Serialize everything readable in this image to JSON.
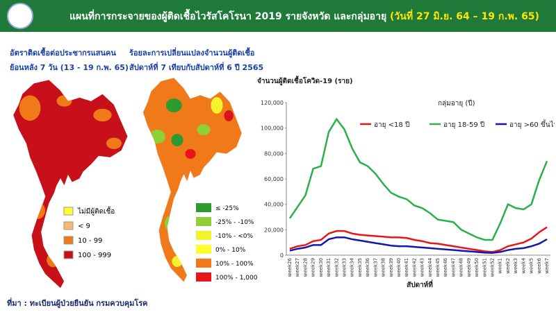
{
  "header": {
    "title": "แผนที่การกระจายของผู้ติดเชื้อไวรัสโคโรนา 2019 รายจังหวัด และกลุ่มอายุ",
    "date_range": "(วันที่ 27 มิ.ย. 64 – 19 ก.พ. 65)"
  },
  "map_left": {
    "title_lines": [
      "อัตราติดเชื้อต่อประชากรแสนคน",
      "ย้อนหลัง 7 วัน (13 - 19 ก.พ. 65)"
    ],
    "legend": [
      "ไม่มีผู้ติดเชื้อ",
      "< 9",
      "10 - 99",
      "100 - 999"
    ]
  },
  "map_right": {
    "title_lines": [
      "ร้อยละการเปลี่ยนแปลงจำนวนผู้ติดเชื้อ",
      "สัปดาห์ที่ 7 เทียบกับสัปดาห์ที่ 6 ปี 2565"
    ],
    "legend": [
      "≤ -25%",
      "-25% - -10%",
      "-10% - <0%",
      "0% - 10%",
      "10% - 100%",
      "100% - 1,000%"
    ]
  },
  "footer": "ที่มา : ทะเบียนผู้ป่วยยืนยัน กรมควบคุมโรค",
  "chart_data": {
    "type": "line",
    "y_label": "จำนวนผู้ติดเชื้อโควิด-19 (ราย)",
    "x_label": "สัปดาห์ที่",
    "legend_title": "กลุ่มอายุ (ปี)",
    "categories": [
      "week26",
      "week27",
      "week28",
      "week29",
      "week30",
      "week31",
      "week32",
      "week33",
      "week34",
      "week35",
      "week36",
      "week37",
      "week38",
      "week39",
      "week40",
      "week41",
      "week42",
      "week43",
      "week44",
      "week45",
      "week46",
      "week47",
      "week48",
      "week49",
      "week50",
      "week51",
      "week52",
      "week1",
      "week2",
      "week3",
      "week4",
      "week5",
      "week6",
      "week7"
    ],
    "series": [
      {
        "name": "อายุ <18 ปี",
        "color": "#e8141c",
        "values": [
          5000,
          7000,
          8000,
          11000,
          12000,
          17000,
          19000,
          19000,
          17000,
          16000,
          15500,
          15000,
          14500,
          14000,
          14000,
          13500,
          12000,
          11000,
          9500,
          9000,
          8000,
          7000,
          6000,
          5000,
          4000,
          3000,
          2500,
          4000,
          7000,
          8500,
          10000,
          13000,
          18000,
          22000
        ]
      },
      {
        "name": "อายุ 18-59 ปี",
        "color": "#28b04a",
        "values": [
          29000,
          38000,
          47000,
          68000,
          70000,
          97000,
          107000,
          99000,
          84000,
          73000,
          70000,
          64000,
          56000,
          49000,
          46000,
          44000,
          39000,
          37000,
          33000,
          28000,
          27000,
          26000,
          20000,
          17000,
          14000,
          12000,
          12000,
          25000,
          40000,
          37000,
          36000,
          40000,
          59000,
          74000
        ]
      },
      {
        "name": "อายุ >60 ขึ้นไป",
        "color": "#1414b4",
        "values": [
          3500,
          5000,
          6000,
          8000,
          8000,
          12500,
          14000,
          14000,
          12500,
          11500,
          10500,
          9500,
          8500,
          7500,
          7000,
          7000,
          6500,
          6000,
          5500,
          5000,
          4500,
          4000,
          3500,
          3000,
          2500,
          2000,
          1800,
          2500,
          4000,
          5000,
          5500,
          7000,
          9000,
          12500
        ]
      }
    ],
    "ylim": [
      0,
      120000
    ],
    "yticks": [
      {
        "value": 0,
        "label": "0"
      },
      {
        "value": 20000,
        "label": "20,000"
      },
      {
        "value": 40000,
        "label": "40,000"
      },
      {
        "value": 60000,
        "label": "60,000"
      },
      {
        "value": 80000,
        "label": "80,000"
      },
      {
        "value": 100000,
        "label": "100,000"
      },
      {
        "value": 120000,
        "label": "120,000"
      }
    ]
  }
}
